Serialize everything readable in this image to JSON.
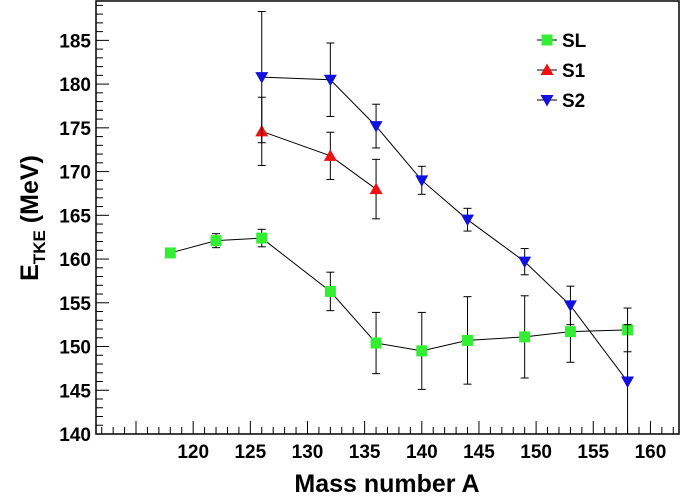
{
  "chart_data": {
    "type": "scatter",
    "xlabel": "Mass number A",
    "ylabel": {
      "main": "E",
      "sub": "TKE",
      "unit": " (MeV)"
    },
    "xlim": [
      111.5,
      162.5
    ],
    "ylim": [
      140,
      189.5
    ],
    "xticks": [
      120,
      125,
      130,
      135,
      140,
      145,
      150,
      155,
      160
    ],
    "yticks": [
      140,
      145,
      150,
      155,
      160,
      165,
      170,
      175,
      180,
      185
    ],
    "grid": false,
    "legend_position": "top-right",
    "series": [
      {
        "name": "SL",
        "marker": "square",
        "color": "#33ee33",
        "x": [
          118,
          122,
          126,
          132,
          136,
          140,
          144,
          149,
          153,
          158
        ],
        "y": [
          160.7,
          162.1,
          162.4,
          156.3,
          150.4,
          149.5,
          150.7,
          151.1,
          151.7,
          151.9
        ],
        "err": [
          0,
          0.8,
          1.0,
          2.2,
          3.5,
          4.4,
          5.0,
          4.7,
          3.5,
          2.5
        ]
      },
      {
        "name": "S1",
        "marker": "triangle-up",
        "color": "#ee1111",
        "x": [
          126,
          132,
          136
        ],
        "y": [
          174.6,
          171.8,
          168.0
        ],
        "err": [
          3.9,
          2.7,
          3.4
        ]
      },
      {
        "name": "S2",
        "marker": "triangle-down",
        "color": "#1111dd",
        "x": [
          126,
          132,
          136,
          140,
          144,
          149,
          153,
          158
        ],
        "y": [
          180.8,
          180.5,
          175.2,
          169.0,
          164.5,
          159.7,
          154.7,
          146.0
        ],
        "err": [
          7.5,
          4.2,
          2.5,
          1.6,
          1.3,
          1.5,
          2.2,
          6.5
        ]
      }
    ]
  }
}
